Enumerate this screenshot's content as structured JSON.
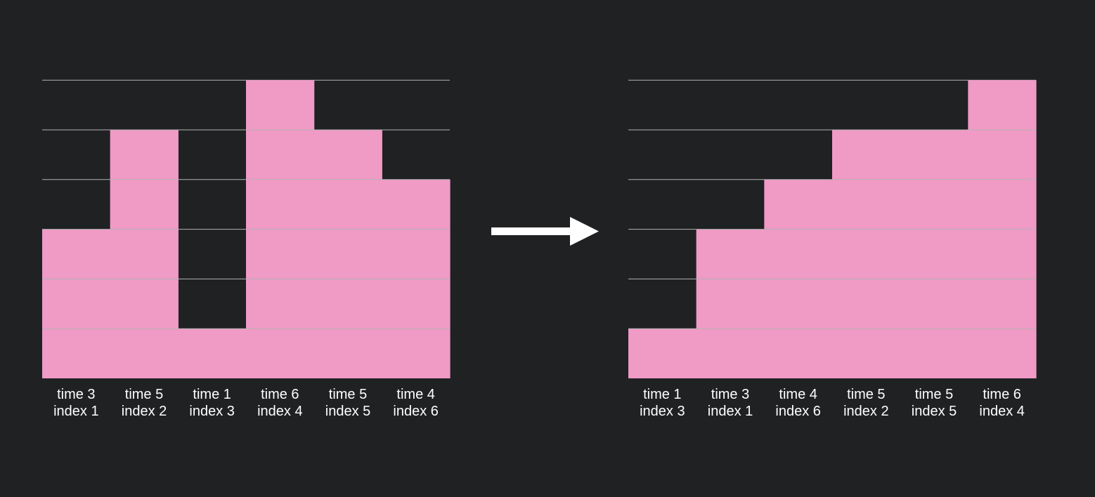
{
  "colors": {
    "background": "#202123",
    "bar": "#f09ac6",
    "gridline": "#b3b3b3",
    "arrow": "#ffffff",
    "label": "#ffffff"
  },
  "chart_data": [
    {
      "type": "bar",
      "name": "before",
      "categories": [
        {
          "time": "time 3",
          "index": "index 1"
        },
        {
          "time": "time 5",
          "index": "index 2"
        },
        {
          "time": "time 1",
          "index": "index 3"
        },
        {
          "time": "time 6",
          "index": "index 4"
        },
        {
          "time": "time 5",
          "index": "index 5"
        },
        {
          "time": "time 4",
          "index": "index 6"
        }
      ],
      "values": [
        3,
        5,
        1,
        6,
        5,
        4
      ],
      "ylim": [
        0,
        6
      ],
      "grid": true
    },
    {
      "type": "bar",
      "name": "after",
      "categories": [
        {
          "time": "time 1",
          "index": "index 3"
        },
        {
          "time": "time 3",
          "index": "index 1"
        },
        {
          "time": "time 4",
          "index": "index 6"
        },
        {
          "time": "time 5",
          "index": "index 2"
        },
        {
          "time": "time 5",
          "index": "index 5"
        },
        {
          "time": "time 6",
          "index": "index 4"
        }
      ],
      "values": [
        1,
        3,
        4,
        5,
        5,
        6
      ],
      "ylim": [
        0,
        6
      ],
      "grid": true
    }
  ],
  "arrow": {
    "icon": "right-arrow-icon"
  }
}
